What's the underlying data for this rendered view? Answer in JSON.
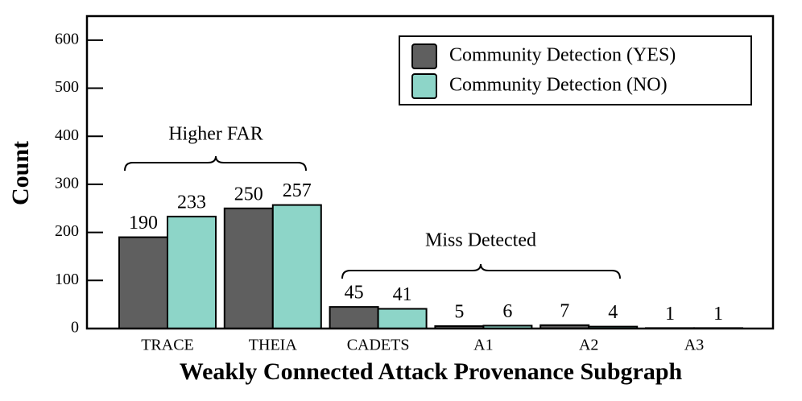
{
  "chart_data": {
    "type": "bar",
    "xlabel": "Weakly Connected Attack Provenance Subgraph",
    "ylabel": "Count",
    "categories": [
      "TRACE",
      "THEIA",
      "CADETS",
      "A1",
      "A2",
      "A3"
    ],
    "series": [
      {
        "name": "Community Detection (YES)",
        "color": "#5f5f5f",
        "values": [
          190,
          250,
          45,
          5,
          7,
          1
        ]
      },
      {
        "name": "Community Detection (NO)",
        "color": "#8dd5c8",
        "values": [
          233,
          257,
          41,
          6,
          4,
          1
        ]
      }
    ],
    "ylim": [
      0,
      650
    ],
    "yticks": [
      0,
      100,
      200,
      300,
      400,
      500,
      600
    ],
    "legend": "upper right",
    "annotations": [
      {
        "text": "Higher FAR",
        "color": "#993399"
      },
      {
        "text": "Miss Detected",
        "color": "#e8401c"
      }
    ]
  }
}
